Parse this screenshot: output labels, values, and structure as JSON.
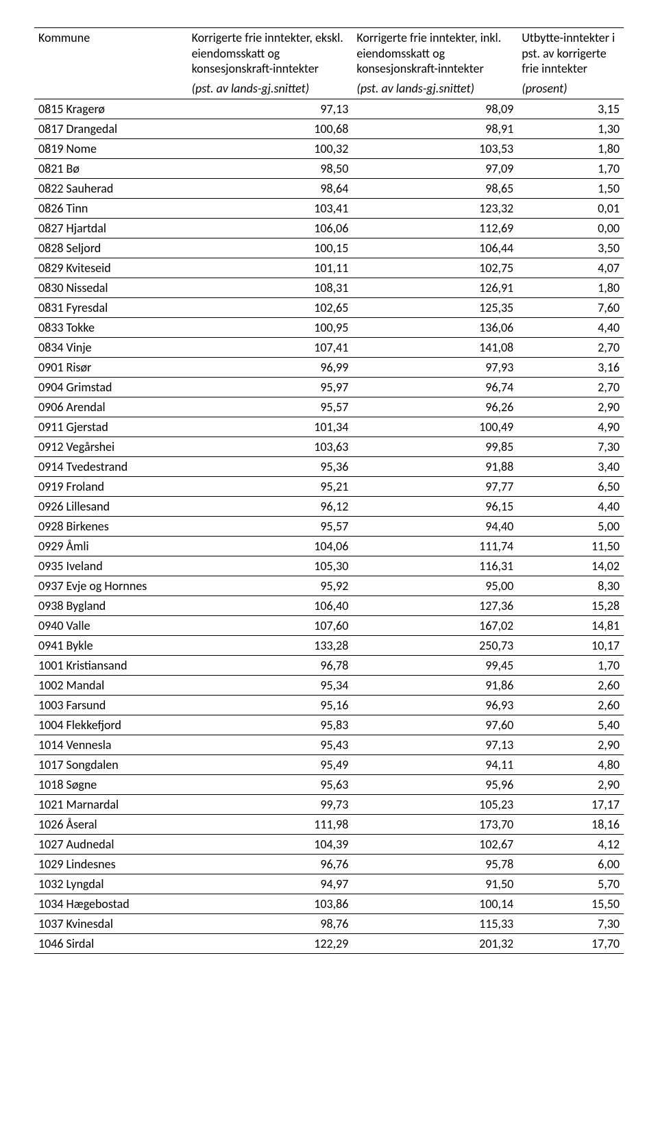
{
  "table": {
    "headers": {
      "kommune": "Kommune",
      "col_a": "Korrigerte frie inntekter, ekskl. eiendomsskatt og konsesjonskraft-inntekter",
      "col_b": "Korrigerte frie inntekter, inkl. eiendomsskatt og konsesjonskraft-inntekter",
      "col_c": "Utbytte-inntekter i pst. av korrigerte frie inntekter"
    },
    "subheaders": {
      "col_a": "(pst. av lands-gj.snittet)",
      "col_b": "(pst. av lands-gj.snittet)",
      "col_c": "(prosent)"
    },
    "rows": [
      {
        "k": "0815 Kragerø",
        "a": "97,13",
        "b": "98,09",
        "c": "3,15"
      },
      {
        "k": "0817 Drangedal",
        "a": "100,68",
        "b": "98,91",
        "c": "1,30"
      },
      {
        "k": "0819 Nome",
        "a": "100,32",
        "b": "103,53",
        "c": "1,80"
      },
      {
        "k": "0821 Bø",
        "a": "98,50",
        "b": "97,09",
        "c": "1,70"
      },
      {
        "k": "0822 Sauherad",
        "a": "98,64",
        "b": "98,65",
        "c": "1,50"
      },
      {
        "k": "0826 Tinn",
        "a": "103,41",
        "b": "123,32",
        "c": "0,01"
      },
      {
        "k": "0827 Hjartdal",
        "a": "106,06",
        "b": "112,69",
        "c": "0,00"
      },
      {
        "k": "0828 Seljord",
        "a": "100,15",
        "b": "106,44",
        "c": "3,50"
      },
      {
        "k": "0829 Kviteseid",
        "a": "101,11",
        "b": "102,75",
        "c": "4,07"
      },
      {
        "k": "0830 Nissedal",
        "a": "108,31",
        "b": "126,91",
        "c": "1,80"
      },
      {
        "k": "0831 Fyresdal",
        "a": "102,65",
        "b": "125,35",
        "c": "7,60"
      },
      {
        "k": "0833 Tokke",
        "a": "100,95",
        "b": "136,06",
        "c": "4,40"
      },
      {
        "k": "0834 Vinje",
        "a": "107,41",
        "b": "141,08",
        "c": "2,70"
      },
      {
        "k": "0901 Risør",
        "a": "96,99",
        "b": "97,93",
        "c": "3,16"
      },
      {
        "k": "0904 Grimstad",
        "a": "95,97",
        "b": "96,74",
        "c": "2,70"
      },
      {
        "k": "0906 Arendal",
        "a": "95,57",
        "b": "96,26",
        "c": "2,90"
      },
      {
        "k": "0911 Gjerstad",
        "a": "101,34",
        "b": "100,49",
        "c": "4,90"
      },
      {
        "k": "0912 Vegårshei",
        "a": "103,63",
        "b": "99,85",
        "c": "7,30"
      },
      {
        "k": "0914 Tvedestrand",
        "a": "95,36",
        "b": "91,88",
        "c": "3,40"
      },
      {
        "k": "0919 Froland",
        "a": "95,21",
        "b": "97,77",
        "c": "6,50"
      },
      {
        "k": "0926 Lillesand",
        "a": "96,12",
        "b": "96,15",
        "c": "4,40"
      },
      {
        "k": "0928 Birkenes",
        "a": "95,57",
        "b": "94,40",
        "c": "5,00"
      },
      {
        "k": "0929 Åmli",
        "a": "104,06",
        "b": "111,74",
        "c": "11,50"
      },
      {
        "k": "0935 Iveland",
        "a": "105,30",
        "b": "116,31",
        "c": "14,02"
      },
      {
        "k": "0937 Evje og Hornnes",
        "a": "95,92",
        "b": "95,00",
        "c": "8,30"
      },
      {
        "k": "0938 Bygland",
        "a": "106,40",
        "b": "127,36",
        "c": "15,28"
      },
      {
        "k": "0940 Valle",
        "a": "107,60",
        "b": "167,02",
        "c": "14,81"
      },
      {
        "k": "0941 Bykle",
        "a": "133,28",
        "b": "250,73",
        "c": "10,17"
      },
      {
        "k": "1001 Kristiansand",
        "a": "96,78",
        "b": "99,45",
        "c": "1,70"
      },
      {
        "k": "1002 Mandal",
        "a": "95,34",
        "b": "91,86",
        "c": "2,60"
      },
      {
        "k": "1003 Farsund",
        "a": "95,16",
        "b": "96,93",
        "c": "2,60"
      },
      {
        "k": "1004 Flekkefjord",
        "a": "95,83",
        "b": "97,60",
        "c": "5,40"
      },
      {
        "k": "1014 Vennesla",
        "a": "95,43",
        "b": "97,13",
        "c": "2,90"
      },
      {
        "k": "1017 Songdalen",
        "a": "95,49",
        "b": "94,11",
        "c": "4,80"
      },
      {
        "k": "1018 Søgne",
        "a": "95,63",
        "b": "95,96",
        "c": "2,90"
      },
      {
        "k": "1021 Marnardal",
        "a": "99,73",
        "b": "105,23",
        "c": "17,17"
      },
      {
        "k": "1026 Åseral",
        "a": "111,98",
        "b": "173,70",
        "c": "18,16"
      },
      {
        "k": "1027 Audnedal",
        "a": "104,39",
        "b": "102,67",
        "c": "4,12"
      },
      {
        "k": "1029 Lindesnes",
        "a": "96,76",
        "b": "95,78",
        "c": "6,00"
      },
      {
        "k": "1032 Lyngdal",
        "a": "94,97",
        "b": "91,50",
        "c": "5,70"
      },
      {
        "k": "1034 Hægebostad",
        "a": "103,86",
        "b": "100,14",
        "c": "15,50"
      },
      {
        "k": "1037 Kvinesdal",
        "a": "98,76",
        "b": "115,33",
        "c": "7,30"
      },
      {
        "k": "1046 Sirdal",
        "a": "122,29",
        "b": "201,32",
        "c": "17,70"
      }
    ]
  }
}
